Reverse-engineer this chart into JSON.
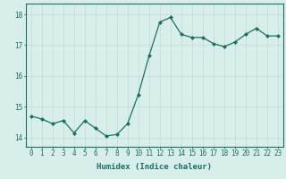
{
  "x": [
    0,
    1,
    2,
    3,
    4,
    5,
    6,
    7,
    8,
    9,
    10,
    11,
    12,
    13,
    14,
    15,
    16,
    17,
    18,
    19,
    20,
    21,
    22,
    23
  ],
  "y": [
    14.7,
    14.6,
    14.45,
    14.55,
    14.15,
    14.55,
    14.3,
    14.05,
    14.1,
    14.45,
    15.4,
    16.65,
    17.75,
    17.9,
    17.35,
    17.25,
    17.25,
    17.05,
    16.95,
    17.1,
    17.35,
    17.55,
    17.3,
    17.3
  ],
  "line_color": "#1a7060",
  "bg_color": "#d8eeea",
  "grid_color_major": "#c8dcd8",
  "grid_color_minor": "#c8dcd8",
  "xlabel": "Humidex (Indice chaleur)",
  "ylim": [
    13.7,
    18.35
  ],
  "xlim": [
    -0.5,
    23.5
  ],
  "yticks": [
    14,
    15,
    16,
    17,
    18
  ],
  "xticks": [
    0,
    1,
    2,
    3,
    4,
    5,
    6,
    7,
    8,
    9,
    10,
    11,
    12,
    13,
    14,
    15,
    16,
    17,
    18,
    19,
    20,
    21,
    22,
    23
  ],
  "tick_fontsize": 5.5,
  "xlabel_fontsize": 6.5
}
